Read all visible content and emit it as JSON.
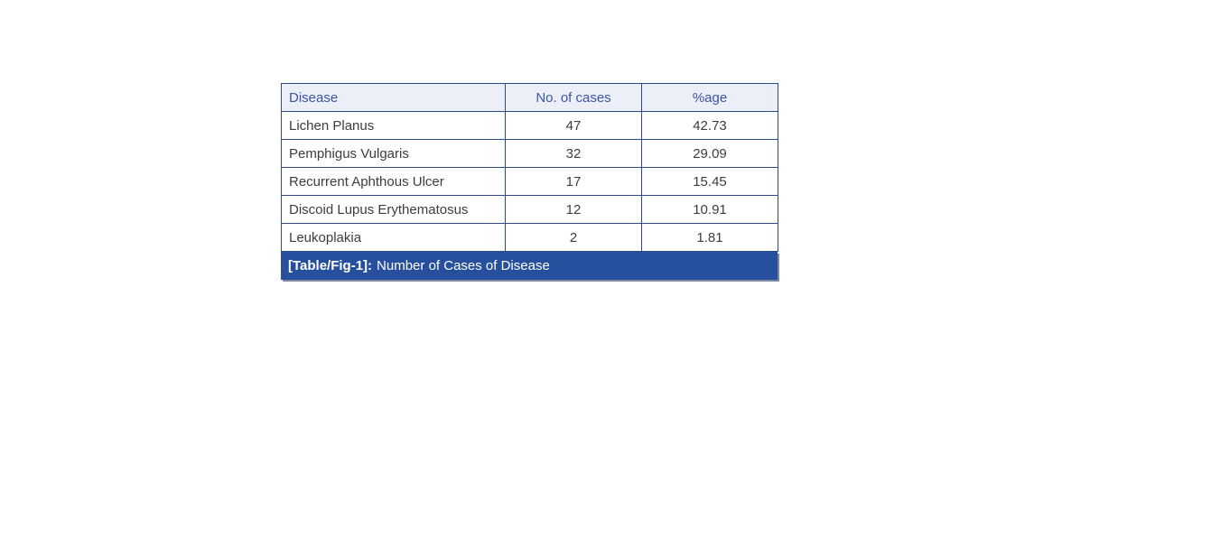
{
  "table": {
    "columns": [
      "Disease",
      "No. of cases",
      "%age"
    ],
    "rows": [
      {
        "disease": "Lichen Planus",
        "cases": "47",
        "percentage": "42.73"
      },
      {
        "disease": "Pemphigus Vulgaris",
        "cases": "32",
        "percentage": "29.09"
      },
      {
        "disease": "Recurrent Aphthous Ulcer",
        "cases": "17",
        "percentage": "15.45"
      },
      {
        "disease": "Discoid Lupus Erythematosus",
        "cases": "12",
        "percentage": "10.91"
      },
      {
        "disease": "Leukoplakia",
        "cases": "2",
        "percentage": "1.81"
      }
    ],
    "caption": {
      "label": "[Table/Fig-1]:",
      "text": "Number of Cases of Disease"
    }
  },
  "colors": {
    "caption_bar_bg": "#26509e",
    "header_bg": "#eceef8",
    "header_text": "#3857a6",
    "border": "#2d4b84",
    "body_text": "#3d3d3d",
    "page_bg": "#ffffff"
  },
  "chart_data": {
    "type": "table",
    "title": "[Table/Fig-1]: Number of Cases of Disease",
    "categories": [
      "Lichen Planus",
      "Pemphigus Vulgaris",
      "Recurrent Aphthous Ulcer",
      "Discoid Lupus Erythematosus",
      "Leukoplakia"
    ],
    "series": [
      {
        "name": "No. of cases",
        "values": [
          47,
          32,
          17,
          12,
          2
        ]
      },
      {
        "name": "%age",
        "values": [
          42.73,
          29.09,
          15.45,
          10.91,
          1.81
        ]
      }
    ]
  }
}
